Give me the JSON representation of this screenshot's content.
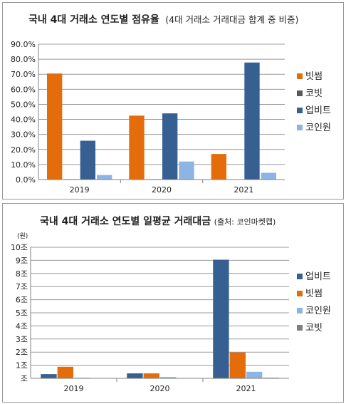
{
  "chart_data": [
    {
      "type": "bar",
      "title": "국내 4대 거래소 연도별 점유율",
      "subtitle": "(4대 거래소 거래대금 합계 중 비중)",
      "categories": [
        "2019",
        "2020",
        "2021"
      ],
      "series": [
        {
          "name": "빗썸",
          "values": [
            70.5,
            42.5,
            17.0
          ],
          "color": "#E46C0A"
        },
        {
          "name": "코빗",
          "values": [
            0.3,
            0.3,
            0.2
          ],
          "color": "#595959"
        },
        {
          "name": "업비트",
          "values": [
            25.8,
            44.0,
            77.8
          ],
          "color": "#376092"
        },
        {
          "name": "코인원",
          "values": [
            3.0,
            12.0,
            4.5
          ],
          "color": "#8DB4E2"
        }
      ],
      "ylim": [
        0,
        90
      ],
      "yticks": [
        0,
        10,
        20,
        30,
        40,
        50,
        60,
        70,
        80,
        90
      ],
      "ytick_labels": [
        "0.0%",
        "10.0%",
        "20.0%",
        "30.0%",
        "40.0%",
        "50.0%",
        "60.0%",
        "70.0%",
        "80.0%",
        "90.0%"
      ],
      "grid": true,
      "legend": "right"
    },
    {
      "type": "bar",
      "title": "국내 4대 거래소 연도별 일평균 거래대금",
      "subtitle": "(출처: 코인마켓캡)",
      "unit_label": "(원)",
      "categories": [
        "2019",
        "2020",
        "2021"
      ],
      "series": [
        {
          "name": "업비트",
          "values": [
            0.32,
            0.38,
            9.05
          ],
          "color": "#376092"
        },
        {
          "name": "빗썸",
          "values": [
            0.88,
            0.38,
            1.98
          ],
          "color": "#E46C0A"
        },
        {
          "name": "코인원",
          "values": [
            0.05,
            0.1,
            0.5
          ],
          "color": "#8DB4E2"
        },
        {
          "name": "코빗",
          "values": [
            0.02,
            0.02,
            0.05
          ],
          "color": "#7F7F7F"
        }
      ],
      "ylim": [
        0,
        10
      ],
      "yticks": [
        0,
        1,
        2,
        3,
        4,
        5,
        6,
        7,
        8,
        9,
        10
      ],
      "ytick_labels": [
        "조",
        "1조",
        "2조",
        "3조",
        "4조",
        "5조",
        "6조",
        "7조",
        "8조",
        "9조",
        "10조"
      ],
      "grid": true,
      "legend": "right"
    }
  ]
}
